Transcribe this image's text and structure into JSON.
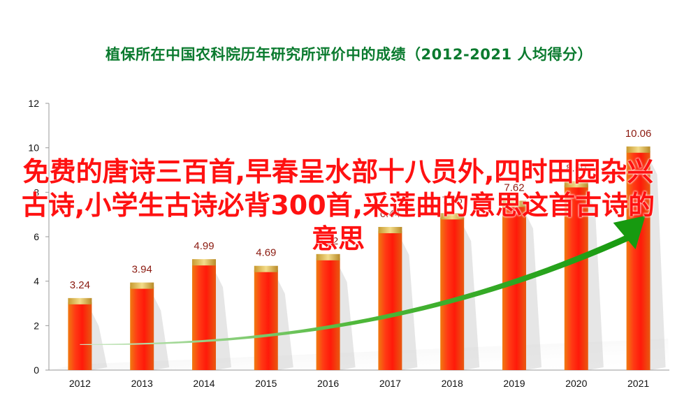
{
  "chart_data": {
    "type": "bar",
    "title": "植保所在中国农科院历年研究所评价中的成绩（2012-2021  人均得分）",
    "categories": [
      "2012",
      "2013",
      "2014",
      "2015",
      "2016",
      "2017",
      "2018",
      "2019",
      "2020",
      "2021"
    ],
    "values": [
      3.24,
      3.94,
      4.99,
      4.69,
      5.22,
      6.44,
      7.06,
      7.62,
      8.5,
      10.06
    ],
    "data_labels": [
      "3.24",
      "3.94",
      "4.99",
      "4.69",
      "5.22",
      "6.44",
      "7.06",
      "7.62",
      "8.50",
      "10.06"
    ],
    "ylim": [
      0,
      12
    ],
    "yticks": [
      0,
      2,
      4,
      6,
      8,
      10,
      12
    ],
    "xlabel": "",
    "ylabel": "",
    "grid": false,
    "legend": "none",
    "colors": {
      "title": "#0a7a2e",
      "bar_core": "#ff2a10",
      "bar_edge": "#e06010",
      "bar_cap": "#d9b44a",
      "arrow": "#1e9a1a",
      "label": "#8b1a10"
    }
  },
  "overlay_text": "免费的唐诗三百首,早春呈水部十八员外,四时田园杂兴古诗,小学生古诗必背300首,采莲曲的意思这首古诗的意思"
}
